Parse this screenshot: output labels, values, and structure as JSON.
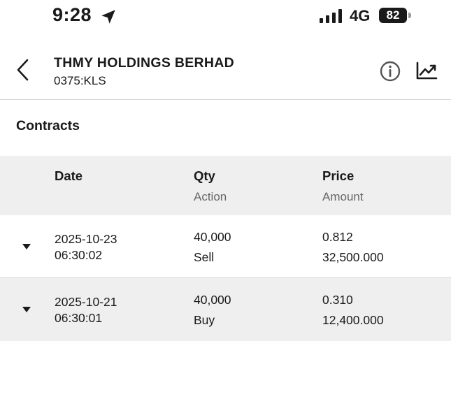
{
  "status": {
    "time": "9:28",
    "network": "4G",
    "battery": "82"
  },
  "header": {
    "title": "THMY HOLDINGS BERHAD",
    "subtitle": "0375:KLS"
  },
  "section": {
    "title": "Contracts"
  },
  "table": {
    "headers": {
      "date": "Date",
      "qty": "Qty",
      "action": "Action",
      "price": "Price",
      "amount": "Amount"
    },
    "rows": [
      {
        "date": "2025-10-23",
        "time": "06:30:02",
        "qty": "40,000",
        "action": "Sell",
        "price": "0.812",
        "amount": "32,500.000"
      },
      {
        "date": "2025-10-21",
        "time": "06:30:01",
        "qty": "40,000",
        "action": "Buy",
        "price": "0.310",
        "amount": "12,400.000"
      }
    ]
  },
  "icons": {
    "location": "location-arrow-icon",
    "signal": "signal-bars-icon",
    "battery": "battery-icon",
    "back": "chevron-left-icon",
    "info": "info-icon",
    "chart": "chart-trend-icon",
    "expand": "caret-down-icon"
  }
}
